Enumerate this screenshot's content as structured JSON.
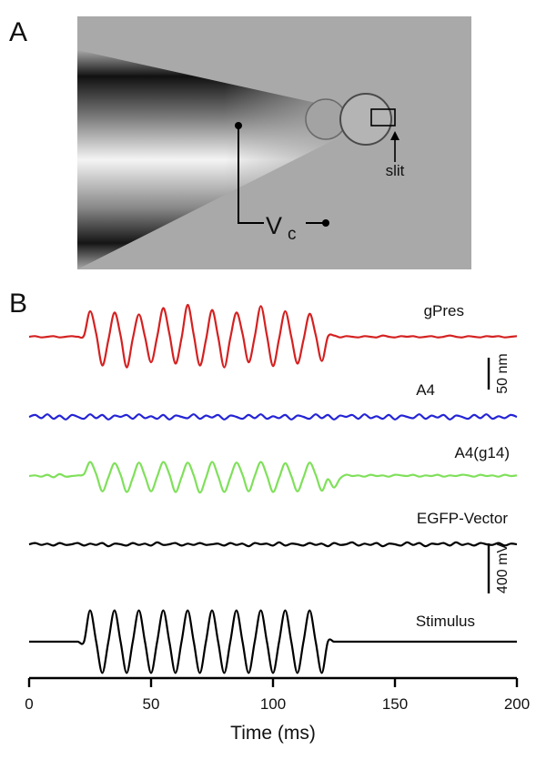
{
  "panel_a": {
    "label": "A",
    "slit": "slit",
    "vc": "V",
    "vc_sub": "c"
  },
  "chart_data": {
    "type": "line",
    "panel_label": "B",
    "x_label": "Time (ms)",
    "xlim": [
      0,
      200
    ],
    "xticks": [
      0,
      50,
      100,
      150,
      200
    ],
    "x": [
      0,
      2.5,
      5,
      7.5,
      10,
      12.5,
      15,
      17.5,
      20,
      22.5,
      25,
      27.5,
      30,
      32.5,
      35,
      37.5,
      40,
      42.5,
      45,
      47.5,
      50,
      52.5,
      55,
      57.5,
      60,
      62.5,
      65,
      67.5,
      70,
      72.5,
      75,
      77.5,
      80,
      82.5,
      85,
      87.5,
      90,
      92.5,
      95,
      97.5,
      100,
      102.5,
      105,
      107.5,
      110,
      112.5,
      115,
      117.5,
      120,
      122.5,
      125,
      127.5,
      130,
      132.5,
      135,
      137.5,
      140,
      142.5,
      145,
      147.5,
      150,
      152.5,
      155,
      157.5,
      160,
      162.5,
      165,
      167.5,
      170,
      172.5,
      175,
      177.5,
      180,
      182.5,
      185,
      187.5,
      190,
      192.5,
      195,
      197.5,
      200
    ],
    "series": [
      {
        "name": "gPres",
        "color": "#d42121",
        "values": [
          0,
          1,
          -1,
          0,
          1,
          -1,
          0,
          1,
          0,
          2,
          40,
          5,
          -45,
          -5,
          38,
          2,
          -48,
          -3,
          35,
          0,
          -40,
          0,
          45,
          5,
          -42,
          -2,
          50,
          3,
          -45,
          -5,
          42,
          0,
          -48,
          -2,
          38,
          5,
          -40,
          0,
          48,
          2,
          -46,
          -3,
          40,
          0,
          -42,
          -5,
          36,
          3,
          -38,
          0,
          2,
          -1,
          1,
          0,
          -1,
          1,
          0,
          -1,
          2,
          0,
          -1,
          1,
          0,
          1,
          -1,
          0,
          1,
          -1,
          0,
          2,
          0,
          -1,
          1,
          0,
          -1,
          1,
          0,
          1,
          -1,
          0,
          1
        ]
      },
      {
        "name": "A4",
        "color": "#2424d6",
        "values": [
          0,
          3,
          -2,
          4,
          -3,
          2,
          -4,
          3,
          0,
          -3,
          4,
          -2,
          3,
          -4,
          2,
          0,
          3,
          -3,
          4,
          -2,
          1,
          -3,
          3,
          -4,
          2,
          0,
          -2,
          4,
          -3,
          2,
          -1,
          3,
          -4,
          2,
          0,
          -3,
          3,
          -2,
          4,
          -3,
          1,
          -2,
          3,
          -4,
          2,
          0,
          -3,
          4,
          -2,
          3,
          -4,
          2,
          0,
          3,
          -3,
          4,
          -2,
          1,
          -3,
          3,
          -4,
          2,
          0,
          -2,
          4,
          -3,
          2,
          -1,
          3,
          -4,
          2,
          0,
          -3,
          3,
          -2,
          4,
          -3,
          1,
          -2,
          3,
          0
        ]
      },
      {
        "name": "A4(g14)",
        "color": "#7fe05a",
        "values": [
          0,
          1,
          -1,
          2,
          -2,
          3,
          -1,
          0,
          1,
          3,
          22,
          3,
          -24,
          -2,
          20,
          2,
          -25,
          -3,
          21,
          0,
          -24,
          -1,
          22,
          3,
          -25,
          -2,
          21,
          1,
          -26,
          -3,
          22,
          0,
          -25,
          -2,
          21,
          2,
          -24,
          0,
          22,
          1,
          -25,
          -3,
          20,
          0,
          -24,
          -2,
          21,
          2,
          -23,
          -5,
          -18,
          -4,
          2,
          0,
          1,
          -1,
          2,
          0,
          1,
          -1,
          2,
          1,
          0,
          2,
          -1,
          1,
          0,
          2,
          -1,
          1,
          0,
          2,
          1,
          -1,
          2,
          0,
          1,
          -1,
          2,
          0,
          1
        ]
      },
      {
        "name": "EGFP-Vector",
        "color": "#000000",
        "values": [
          0,
          2,
          -1,
          1,
          -2,
          2,
          -1,
          0,
          2,
          -2,
          1,
          -1,
          2,
          -3,
          1,
          0,
          -2,
          2,
          -1,
          1,
          -2,
          3,
          -1,
          0,
          2,
          -2,
          1,
          -1,
          2,
          -1,
          0,
          1,
          -2,
          2,
          -1,
          1,
          -3,
          2,
          0,
          1,
          -2,
          3,
          -2,
          1,
          0,
          -2,
          2,
          -1,
          1,
          -3,
          2,
          -1,
          0,
          3,
          -2,
          1,
          -1,
          2,
          -3,
          1,
          0,
          -2,
          3,
          -1,
          2,
          -3,
          1,
          0,
          2,
          -2,
          3,
          -1,
          1,
          -2,
          2,
          0,
          -1,
          2,
          -2,
          1,
          0
        ]
      },
      {
        "name": "Stimulus",
        "color": "#000000",
        "axis": "y2",
        "values": [
          0,
          0,
          0,
          0,
          0,
          0,
          0,
          0,
          0,
          0,
          250,
          0,
          -250,
          0,
          250,
          0,
          -250,
          0,
          250,
          0,
          -250,
          0,
          250,
          0,
          -250,
          0,
          250,
          0,
          -250,
          0,
          250,
          0,
          -250,
          0,
          250,
          0,
          -250,
          0,
          250,
          0,
          -250,
          0,
          250,
          0,
          -250,
          0,
          250,
          0,
          -250,
          0,
          0,
          0,
          0,
          0,
          0,
          0,
          0,
          0,
          0,
          0,
          0,
          0,
          0,
          0,
          0,
          0,
          0,
          0,
          0,
          0,
          0,
          0,
          0,
          0,
          0,
          0,
          0,
          0,
          0,
          0,
          0
        ]
      }
    ],
    "scale_bars": [
      {
        "label": "50 nm",
        "value": 50
      },
      {
        "label": "400 mV",
        "value": 400,
        "axis": "y2"
      }
    ]
  }
}
